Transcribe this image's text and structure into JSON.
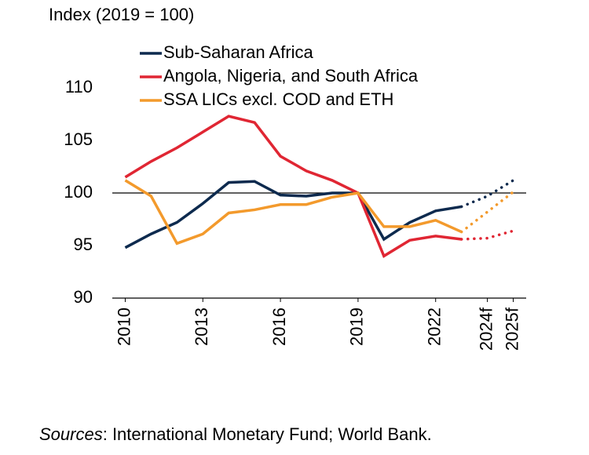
{
  "chart_data": {
    "type": "line",
    "y_label": "Index (2019 = 100)",
    "x": [
      2010,
      2011,
      2012,
      2013,
      2014,
      2015,
      2016,
      2017,
      2018,
      2019,
      2020,
      2021,
      2022,
      2023,
      2024,
      2025
    ],
    "series": [
      {
        "name": "Sub-Saharan Africa",
        "color": "#0d2a4e",
        "values": [
          94.8,
          96.1,
          97.2,
          99.0,
          101.0,
          101.1,
          99.8,
          99.7,
          100.0,
          100,
          95.6,
          97.2,
          98.3,
          98.7,
          99.7,
          101.2
        ]
      },
      {
        "name": "Angola, Nigeria, and South Africa",
        "color": "#e02633",
        "values": [
          101.5,
          103.0,
          104.3,
          105.8,
          107.3,
          106.7,
          103.5,
          102.1,
          101.2,
          100,
          94.0,
          95.5,
          95.9,
          95.6,
          95.7,
          96.4
        ]
      },
      {
        "name": "SSA LICs excl. COD and ETH",
        "color": "#f39a2c",
        "values": [
          101.2,
          99.7,
          95.2,
          96.1,
          98.1,
          98.4,
          98.9,
          98.9,
          99.6,
          100,
          96.8,
          96.8,
          97.4,
          96.3,
          98.2,
          100.1
        ]
      }
    ],
    "forecast_from": 2023,
    "reference_line": 100,
    "xlim": [
      2009.5,
      2025.5
    ],
    "xticks": [
      2010,
      2013,
      2016,
      2019,
      2022,
      {
        "value": 2024,
        "label": "2024f"
      },
      {
        "value": 2025,
        "label": "2025f"
      }
    ],
    "ylim": [
      90,
      110
    ],
    "yticks": [
      90,
      95,
      100,
      105,
      110
    ],
    "grid": false,
    "legend": "top",
    "source_label": "Sources",
    "source_text": ": International Monetary Fund; World Bank."
  }
}
